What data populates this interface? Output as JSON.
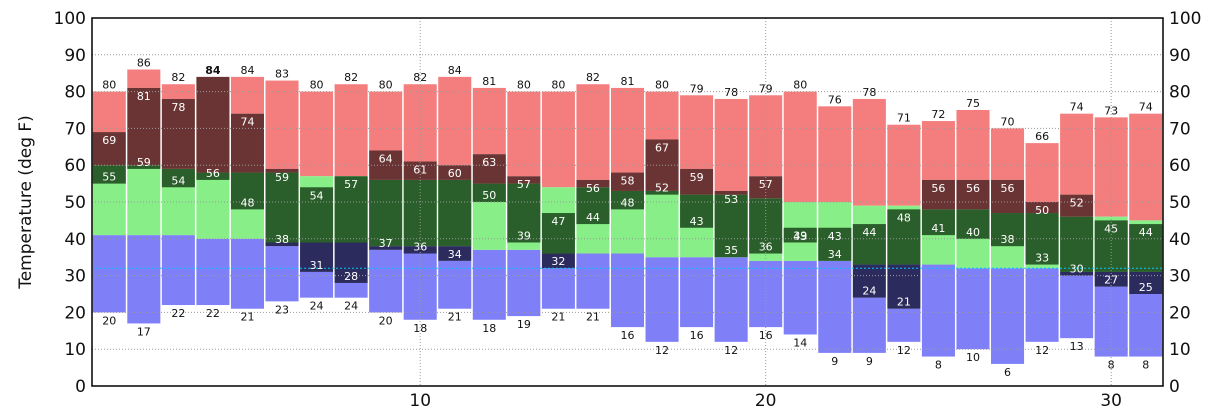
{
  "chart_data": {
    "type": "bar",
    "ylabel": "Temperature (deg F)",
    "xlabel": "",
    "xlim": [
      0.5,
      31.5
    ],
    "ylim": [
      0,
      100
    ],
    "x_ticks": [
      10,
      20,
      30
    ],
    "y_ticks": [
      0,
      10,
      20,
      30,
      40,
      50,
      60,
      70,
      80,
      90,
      100
    ],
    "grid": true,
    "legend": "none",
    "reference_line": 32,
    "colors": {
      "record_band": "#f47e7e",
      "record_high_dark": "#6b3434",
      "normal_band_light": "#88ee88",
      "normal_band_dark": "#2a5e2a",
      "cold_band": "#7f7ff7",
      "record_low_dark": "#2b2b5e",
      "freezing_line": "#00c8ff",
      "highlight_label": "#ff0000"
    },
    "days": [
      1,
      2,
      3,
      4,
      5,
      6,
      7,
      8,
      9,
      10,
      11,
      12,
      13,
      14,
      15,
      16,
      17,
      18,
      19,
      20,
      21,
      22,
      23,
      24,
      25,
      26,
      27,
      28,
      29,
      30,
      31
    ],
    "record_high": [
      80,
      86,
      82,
      84,
      84,
      83,
      80,
      82,
      80,
      82,
      84,
      81,
      80,
      80,
      82,
      81,
      80,
      79,
      78,
      79,
      80,
      76,
      78,
      71,
      72,
      75,
      70,
      66,
      74,
      73,
      74
    ],
    "actual_high": [
      69,
      81,
      78,
      84,
      74,
      59,
      54,
      57,
      64,
      61,
      60,
      63,
      57,
      47,
      56,
      58,
      67,
      59,
      53,
      57,
      43,
      43,
      44,
      48,
      56,
      56,
      56,
      50,
      52,
      45,
      44
    ],
    "normal_high": [
      60,
      60,
      59,
      58,
      58,
      58,
      57,
      57,
      56,
      56,
      56,
      55,
      55,
      54,
      54,
      53,
      53,
      52,
      52,
      51,
      50,
      50,
      49,
      49,
      48,
      48,
      47,
      47,
      46,
      46,
      45
    ],
    "normal_low": [
      41,
      41,
      41,
      40,
      40,
      39,
      39,
      39,
      38,
      38,
      38,
      37,
      37,
      36,
      36,
      36,
      35,
      35,
      35,
      34,
      34,
      34,
      33,
      33,
      33,
      32,
      32,
      32,
      31,
      31,
      31
    ],
    "actual_low": [
      55,
      59,
      54,
      56,
      48,
      38,
      31,
      28,
      37,
      36,
      34,
      50,
      39,
      32,
      44,
      48,
      52,
      43,
      35,
      36,
      39,
      34,
      24,
      21,
      41,
      40,
      38,
      33,
      30,
      27,
      25
    ],
    "record_low": [
      20,
      17,
      22,
      22,
      21,
      23,
      24,
      24,
      20,
      18,
      21,
      18,
      19,
      21,
      21,
      16,
      12,
      16,
      12,
      16,
      14,
      9,
      9,
      12,
      8,
      10,
      6,
      12,
      13,
      8,
      8
    ],
    "highlight_days": [
      4
    ]
  }
}
